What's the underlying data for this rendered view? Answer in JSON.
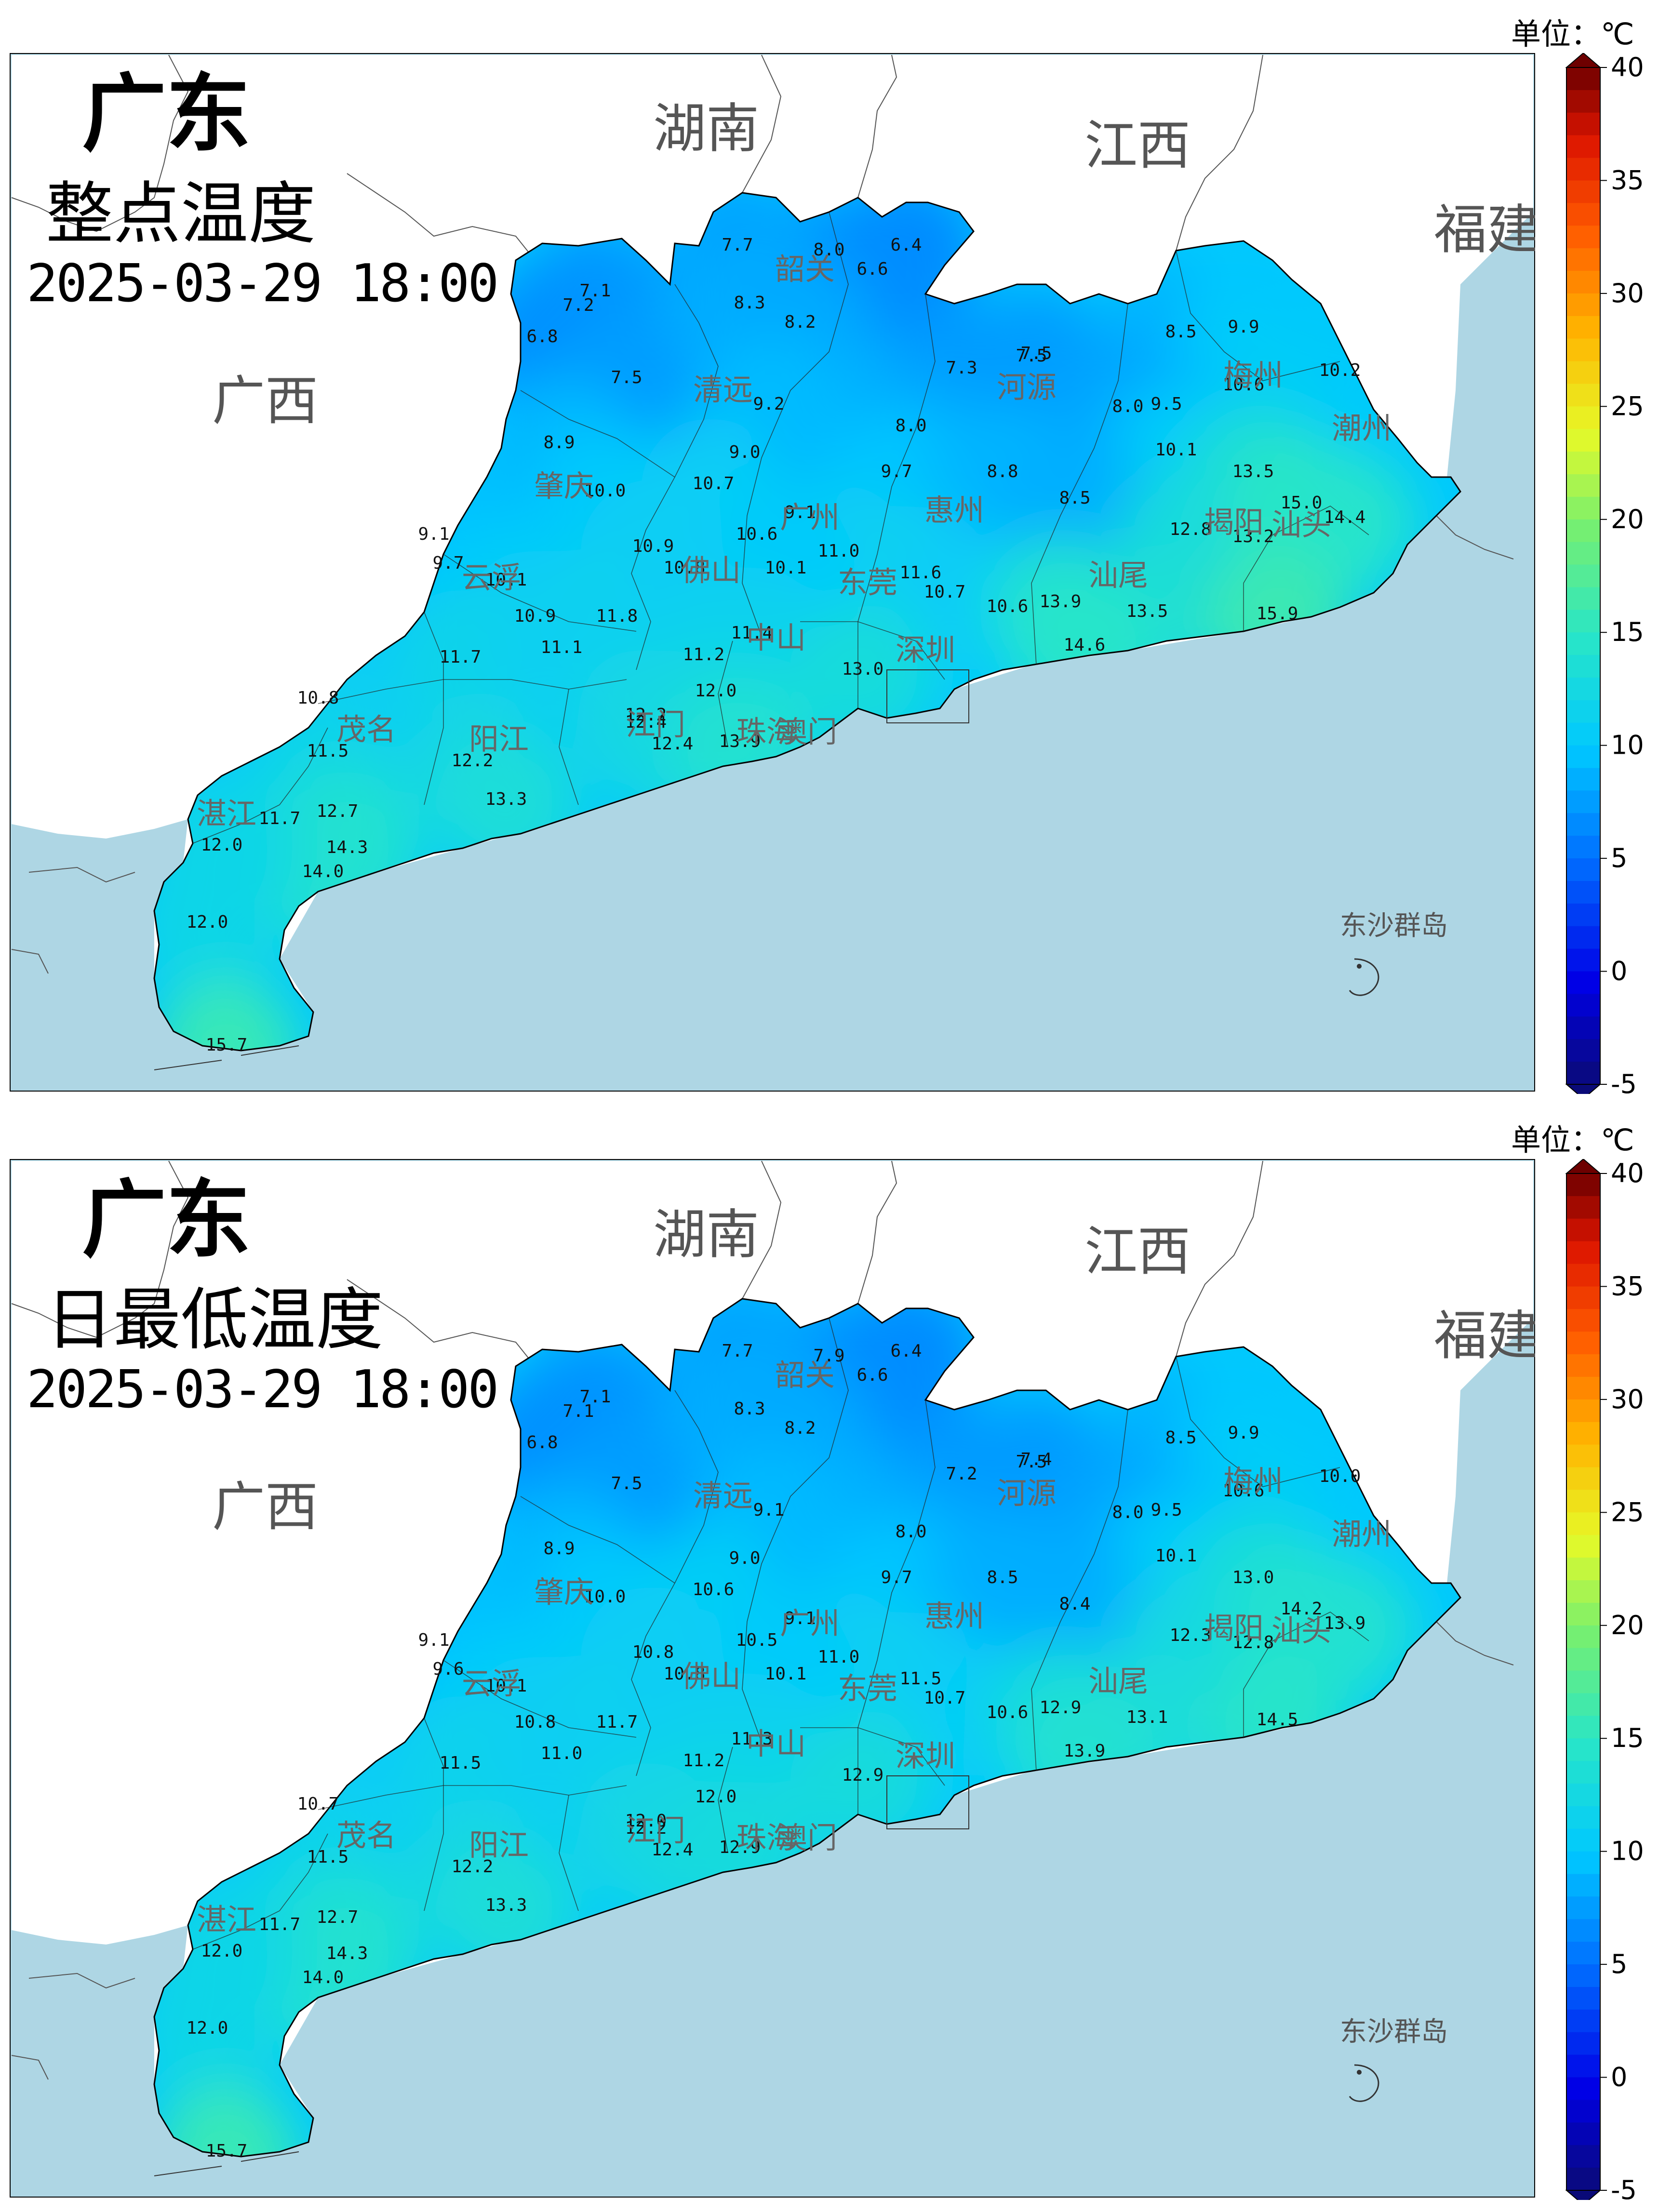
{
  "colorbar": {
    "unit": "单位：℃",
    "ticks": [
      "40",
      "35",
      "30",
      "25",
      "20",
      "15",
      "10",
      "5",
      "0",
      "-5"
    ]
  },
  "map_labels": {
    "provinces": [
      "湖南",
      "江西",
      "福建",
      "广西"
    ],
    "islands": "东沙群岛"
  },
  "panels": [
    {
      "title": "广东",
      "subtitle": "整点温度",
      "time": "2025-03-29 18:00",
      "cities": [
        "韶关",
        "清远",
        "河源",
        "梅州",
        "肇庆",
        "广州",
        "惠州",
        "潮州",
        "揭阳",
        "汕头",
        "云浮",
        "佛山",
        "东莞",
        "汕尾",
        "中山",
        "深圳",
        "江门",
        "珠海",
        "澳门",
        "茂名",
        "阳江",
        "湛江"
      ],
      "values": [
        "7.7",
        "8.0",
        "6.4",
        "6.6",
        "7.1",
        "7.2",
        "6.8",
        "8.3",
        "8.2",
        "7.5",
        "7.5",
        "7.3",
        "7.5",
        "8.5",
        "9.9",
        "10.2",
        "10.6",
        "9.5",
        "8.9",
        "9.2",
        "9.0",
        "8.0",
        "8.0",
        "10.1",
        "10.0",
        "10.7",
        "9.1",
        "9.7",
        "8.8",
        "8.5",
        "13.5",
        "9.1",
        "10.9",
        "10.6",
        "11.0",
        "11.6",
        "12.8",
        "13.2",
        "15.0",
        "14.4",
        "9.7",
        "10.1",
        "10.9",
        "11.8",
        "10.8",
        "10.1",
        "10.7",
        "10.6",
        "13.9",
        "13.5",
        "15.9",
        "11.7",
        "11.1",
        "11.4",
        "11.2",
        "13.0",
        "14.6",
        "10.8",
        "12.0",
        "12.2",
        "12.4",
        "12.4",
        "13.9",
        "11.5",
        "12.2",
        "13.3",
        "11.7",
        "12.7",
        "14.3",
        "14.0",
        "12.0",
        "12.0",
        "15.7"
      ]
    },
    {
      "title": "广东",
      "subtitle": "日最低温度",
      "time": "2025-03-29 18:00",
      "cities": [
        "韶关",
        "清远",
        "河源",
        "梅州",
        "肇庆",
        "广州",
        "惠州",
        "潮州",
        "揭阳",
        "汕头",
        "云浮",
        "佛山",
        "东莞",
        "汕尾",
        "中山",
        "深圳",
        "江门",
        "珠海",
        "澳门",
        "茂名",
        "阳江",
        "湛江"
      ],
      "values": [
        "7.7",
        "7.9",
        "6.4",
        "6.6",
        "7.1",
        "7.1",
        "6.8",
        "8.3",
        "8.2",
        "7.5",
        "7.5",
        "7.2",
        "7.4",
        "8.5",
        "9.9",
        "10.0",
        "10.6",
        "9.5",
        "8.9",
        "9.1",
        "9.0",
        "8.0",
        "8.0",
        "10.1",
        "10.0",
        "10.6",
        "9.1",
        "9.7",
        "8.5",
        "8.4",
        "13.0",
        "9.1",
        "10.8",
        "10.5",
        "11.0",
        "11.5",
        "12.3",
        "12.8",
        "14.2",
        "13.9",
        "9.6",
        "10.1",
        "10.8",
        "11.7",
        "10.8",
        "10.1",
        "10.7",
        "10.6",
        "12.9",
        "13.1",
        "14.5",
        "11.5",
        "11.0",
        "11.3",
        "11.2",
        "12.9",
        "13.9",
        "10.7",
        "12.0",
        "12.0",
        "12.2",
        "12.4",
        "12.9",
        "11.5",
        "12.2",
        "13.3",
        "11.7",
        "12.7",
        "14.3",
        "14.0",
        "12.0",
        "12.0",
        "15.7"
      ]
    }
  ]
}
